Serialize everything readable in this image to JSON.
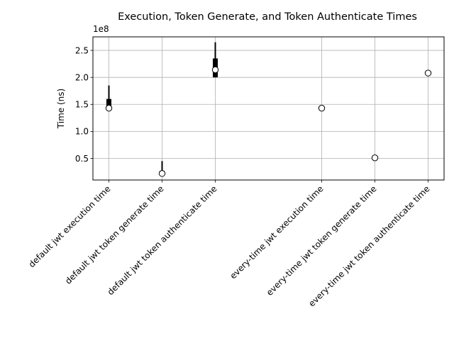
{
  "chart_data": {
    "type": "box",
    "title": "Execution, Token Generate, and Token Authenticate Times",
    "xlabel": "",
    "ylabel": "Time (ns)",
    "y_offset_label": "1e8",
    "ylim": [
      0.1,
      2.75
    ],
    "yticks": [
      0.5,
      1.0,
      1.5,
      2.0,
      2.5
    ],
    "ytick_labels": [
      "0.5",
      "1.0",
      "1.5",
      "2.0",
      "2.5"
    ],
    "grid": true,
    "categories": [
      "default jwt execution time",
      "default jwt token generate time",
      "default jwt token authenticate time",
      "every-time jwt execution time",
      "every-time jwt token generate time",
      "every-time jwt token authenticate time"
    ],
    "x_positions": [
      1,
      2,
      3,
      5,
      6,
      7
    ],
    "boxes": [
      {
        "whisker_low": 1.4,
        "q1": 1.4,
        "q3": 1.6,
        "whisker_high": 1.85,
        "mean": 1.43
      },
      {
        "whisker_low": 0.2,
        "q1": 0.2,
        "q3": 0.27,
        "whisker_high": 0.45,
        "mean": 0.22
      },
      {
        "whisker_low": 2.0,
        "q1": 2.0,
        "q3": 2.35,
        "whisker_high": 2.65,
        "mean": 2.14
      },
      {
        "whisker_low": 1.43,
        "q1": 1.43,
        "q3": 1.43,
        "whisker_high": 1.43,
        "mean": 1.43
      },
      {
        "whisker_low": 0.51,
        "q1": 0.51,
        "q3": 0.51,
        "whisker_high": 0.51,
        "mean": 0.51
      },
      {
        "whisker_low": 2.08,
        "q1": 2.08,
        "q3": 2.08,
        "whisker_high": 2.08,
        "mean": 2.08
      }
    ]
  }
}
